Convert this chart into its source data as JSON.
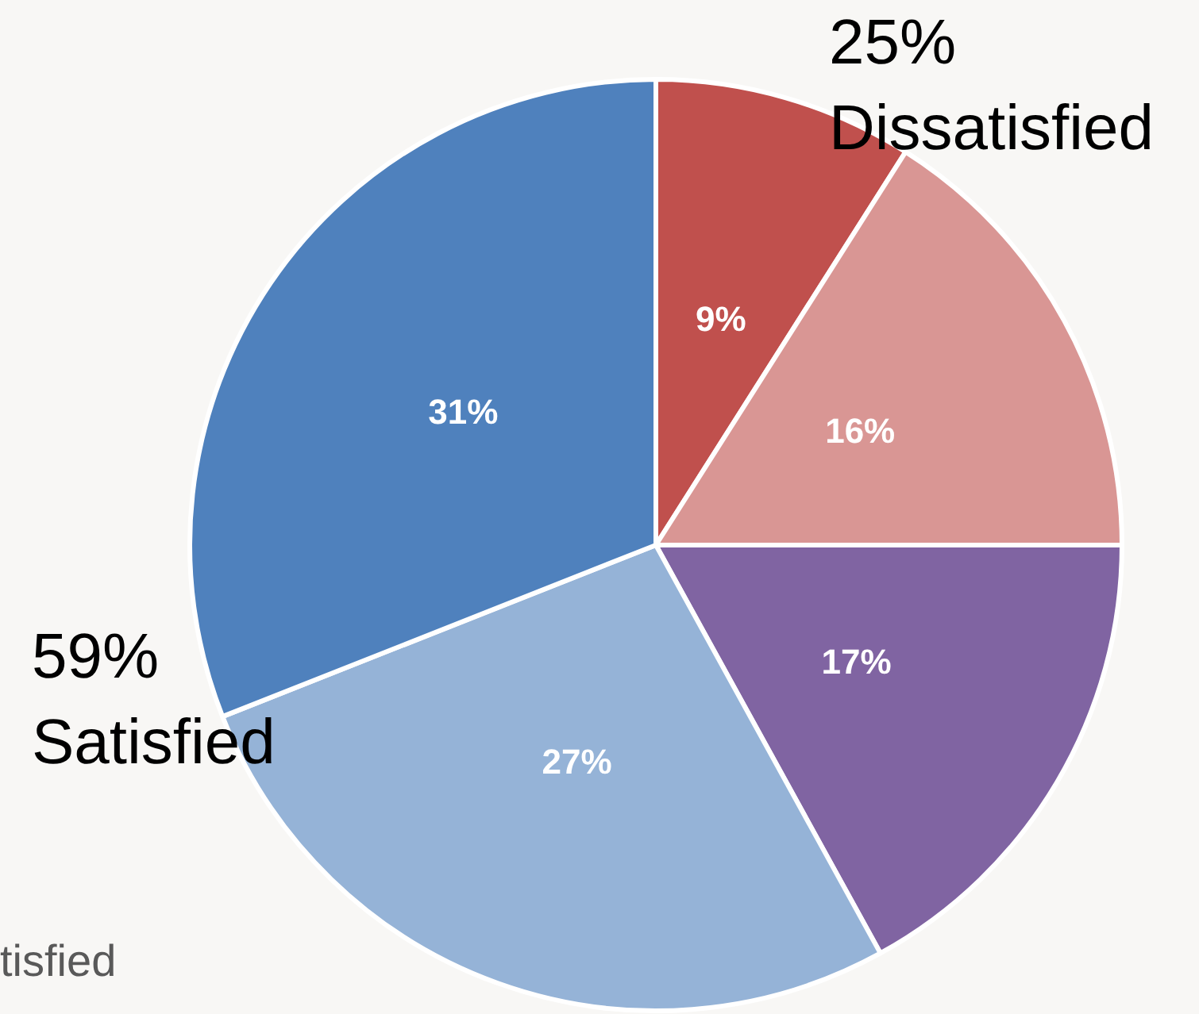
{
  "chart_data": {
    "type": "pie",
    "categories": [
      null,
      null,
      null,
      null,
      null
    ],
    "values": [
      9,
      16,
      17,
      27,
      31
    ],
    "colors": [
      "#c0504d",
      "#d99694",
      "#8064a2",
      "#95b3d7",
      "#4f81bd"
    ],
    "value_labels": [
      "9%",
      "16%",
      "17%",
      "27%",
      "31%"
    ],
    "annotations": [
      "25%\nDissatisfied",
      "59%\nSatisfied",
      "tisfied"
    ]
  }
}
